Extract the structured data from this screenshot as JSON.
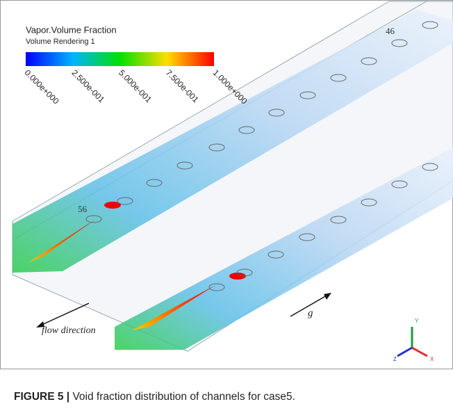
{
  "figure": {
    "legend": {
      "title": "Vapor.Volume Fraction",
      "subtitle": "Volume Rendering 1",
      "ticks": [
        "0.000e+000",
        "2.500e-001",
        "5.000e-001",
        "7.500e-001",
        "1.000e+000"
      ]
    },
    "annotations": {
      "top_label": "46",
      "bottom_label": "56",
      "flow": "flow direction",
      "gravity": "g"
    },
    "triad": {
      "y": "Y",
      "z": "Z",
      "x": "X"
    }
  },
  "caption": {
    "label": "FIGURE 5 |",
    "text": "Void fraction distribution of channels for case5."
  }
}
